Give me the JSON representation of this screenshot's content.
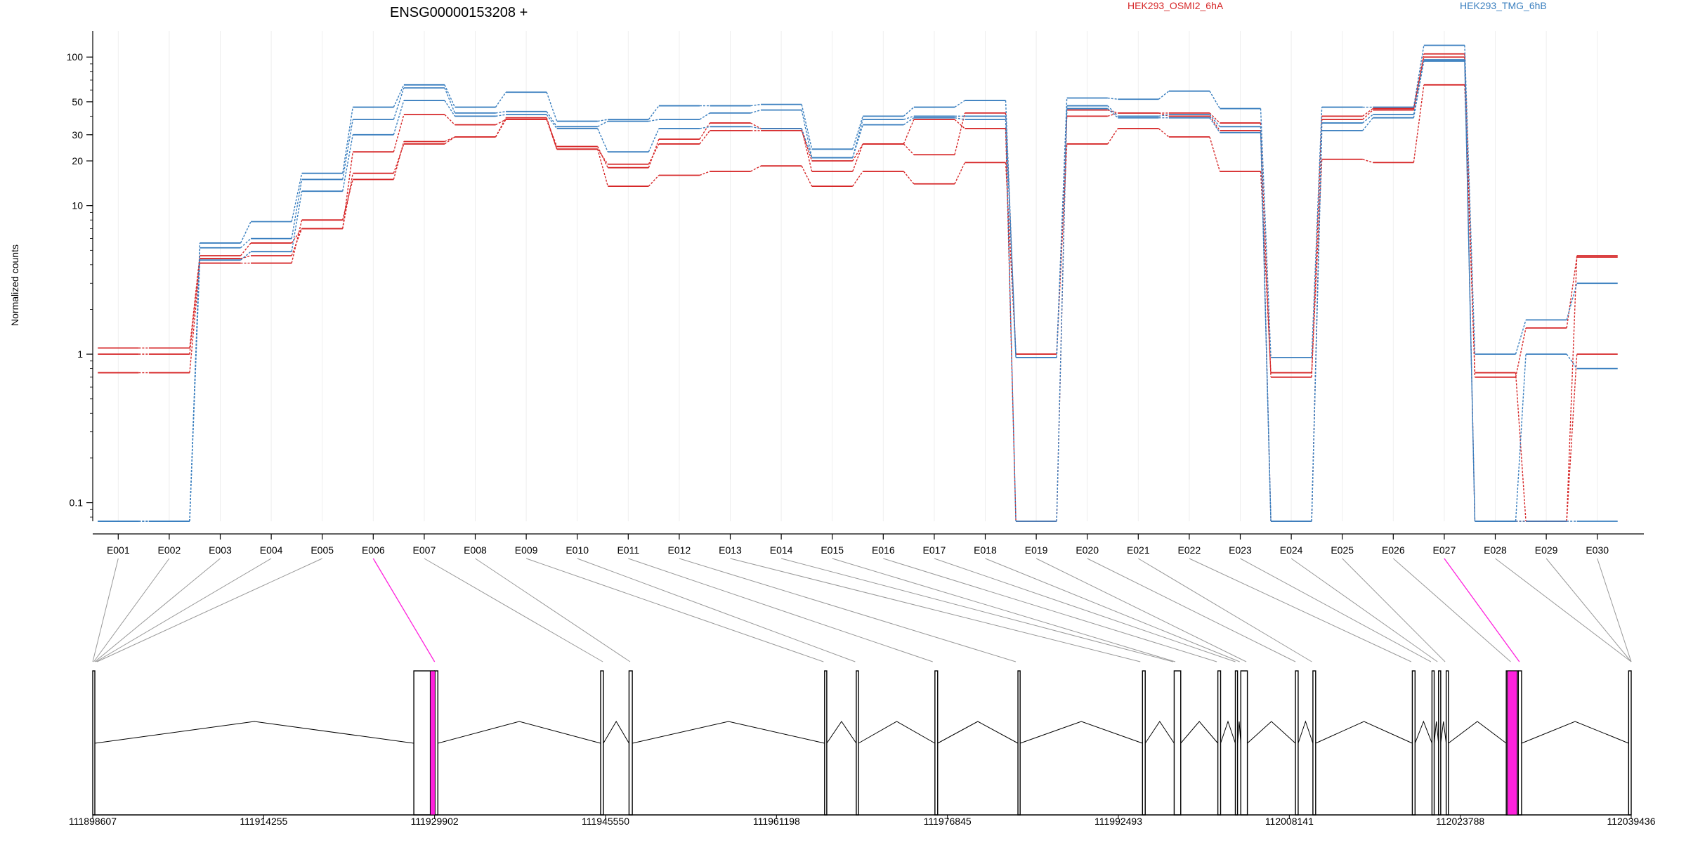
{
  "chart_data": {
    "type": "line",
    "title": "ENSG00000153208 +",
    "ylabel": "Normalized counts",
    "yscale": "log",
    "y_ticks": [
      "100",
      "50",
      "30",
      "20",
      "10",
      "1",
      "0.1"
    ],
    "y_tick_values": [
      100,
      50,
      30,
      20,
      10,
      1,
      0.1
    ],
    "ylim": [
      0.075,
      150
    ],
    "legend_placement": "top",
    "exons": [
      "E001",
      "E002",
      "E003",
      "E004",
      "E005",
      "E006",
      "E007",
      "E008",
      "E009",
      "E010",
      "E011",
      "E012",
      "E013",
      "E014",
      "E015",
      "E016",
      "E017",
      "E018",
      "E019",
      "E020",
      "E021",
      "E022",
      "E023",
      "E024",
      "E025",
      "E026",
      "E027",
      "E028",
      "E029",
      "E030"
    ],
    "highlighted_exons": [
      "E006",
      "E027"
    ],
    "colors": {
      "HEK293_OSMI2_6hA": "#d62728",
      "HEK293_TMG_6hB": "#3a7fbf",
      "highlight": "#ff22dd"
    },
    "series": [
      {
        "name": "HEK293_OSMI2_6hA",
        "color": "#d62728",
        "values": [
          1.1,
          1.1,
          4.6,
          5.6,
          7.0,
          16.5,
          26.0,
          29.0,
          39.0,
          24.0,
          19.0,
          26.0,
          32.0,
          32.0,
          20.0,
          26.0,
          38.0,
          33.0,
          0.075,
          44.0,
          42.0,
          42.0,
          36.0,
          0.075,
          38.0,
          44.0,
          105.0,
          0.075,
          0.075,
          4.6
        ]
      },
      {
        "name": "HEK293_OSMI2_6hA",
        "color": "#d62728",
        "values": [
          1.0,
          1.0,
          4.4,
          4.6,
          7.0,
          23.0,
          41.0,
          35.0,
          38.0,
          25.0,
          18.0,
          28.0,
          36.0,
          33.0,
          17.0,
          26.0,
          22.0,
          42.0,
          1.0,
          40.0,
          42.0,
          40.0,
          32.0,
          0.7,
          40.0,
          45.0,
          100.0,
          0.7,
          1.5,
          4.5
        ]
      },
      {
        "name": "HEK293_OSMI2_6hA",
        "color": "#d62728",
        "values": [
          0.75,
          0.75,
          4.1,
          4.1,
          8.0,
          15.0,
          27.0,
          29.0,
          38.0,
          24.0,
          13.5,
          16.0,
          17.0,
          18.5,
          13.5,
          17.0,
          14.0,
          19.5,
          1.0,
          26.0,
          33.0,
          29.0,
          17.0,
          0.75,
          20.5,
          19.5,
          65.0,
          0.75,
          0.075,
          1.0
        ]
      },
      {
        "name": "HEK293_TMG_6hB",
        "color": "#3a7fbf",
        "values": [
          0.075,
          0.075,
          5.6,
          7.8,
          16.5,
          46.0,
          65.0,
          46.0,
          58.0,
          37.0,
          38.0,
          47.0,
          47.0,
          48.0,
          24.0,
          40.0,
          46.0,
          51.0,
          0.95,
          53.0,
          52.0,
          59.0,
          45.0,
          0.95,
          46.0,
          46.0,
          120.0,
          1.0,
          1.7,
          3.0
        ]
      },
      {
        "name": "HEK293_TMG_6hB",
        "color": "#3a7fbf",
        "values": [
          0.075,
          0.075,
          5.2,
          6.0,
          15.0,
          38.0,
          62.0,
          42.0,
          43.0,
          34.0,
          37.0,
          38.0,
          42.0,
          44.0,
          21.0,
          38.0,
          40.0,
          40.0,
          0.95,
          47.0,
          40.0,
          41.0,
          34.0,
          0.075,
          36.0,
          41.0,
          96.0,
          0.075,
          1.0,
          0.8
        ]
      },
      {
        "name": "HEK293_TMG_6hB",
        "color": "#3a7fbf",
        "values": [
          0.075,
          0.075,
          4.3,
          4.9,
          12.5,
          30.0,
          51.0,
          40.0,
          41.0,
          33.0,
          23.0,
          33.0,
          34.0,
          33.0,
          21.0,
          35.0,
          39.0,
          38.0,
          0.075,
          45.0,
          39.0,
          39.0,
          31.0,
          0.075,
          32.0,
          39.0,
          94.0,
          0.075,
          0.075,
          0.075
        ]
      }
    ],
    "gene_model": {
      "genomic_ticks": [
        "111898607",
        "111914255",
        "111929902",
        "111945550",
        "111961198",
        "111976845",
        "111992493",
        "112008141",
        "112023788",
        "112039436"
      ],
      "exon_positions": [
        111898607,
        111898700,
        111898800,
        111898900,
        111899000,
        111929902,
        111945300,
        111947800,
        111965500,
        111968400,
        111975500,
        111983100,
        111994500,
        111997500,
        111997700,
        112001500,
        112003200,
        112003600,
        112004200,
        112008700,
        112010200,
        112019300,
        112021100,
        112021700,
        112022400,
        112028400,
        112029200,
        112039436,
        112039436,
        112039436
      ],
      "exon_spans": [
        [
          111898607,
          111898800
        ],
        [
          111928000,
          111929900
        ],
        [
          111929900,
          111930200
        ],
        [
          111945100,
          111945350
        ],
        [
          111947700,
          111948000
        ],
        [
          111965600,
          111965800
        ],
        [
          111968500,
          111968700
        ],
        [
          111975700,
          111975950
        ],
        [
          111983300,
          111983500
        ],
        [
          111994700,
          111994950
        ],
        [
          111997600,
          111998200
        ],
        [
          112001600,
          112001850
        ],
        [
          112003200,
          112003400
        ],
        [
          112003700,
          112004300
        ],
        [
          112008700,
          112008950
        ],
        [
          112010300,
          112010550
        ],
        [
          112019400,
          112019650
        ],
        [
          112021200,
          112021400
        ],
        [
          112021800,
          112022000
        ],
        [
          112022500,
          112022700
        ],
        [
          112028000,
          112029100
        ],
        [
          112029100,
          112029400
        ],
        [
          112039200,
          112039436
        ]
      ],
      "highlight_spans": [
        [
          111929500,
          111929950
        ],
        [
          112028100,
          112029000
        ]
      ]
    }
  }
}
